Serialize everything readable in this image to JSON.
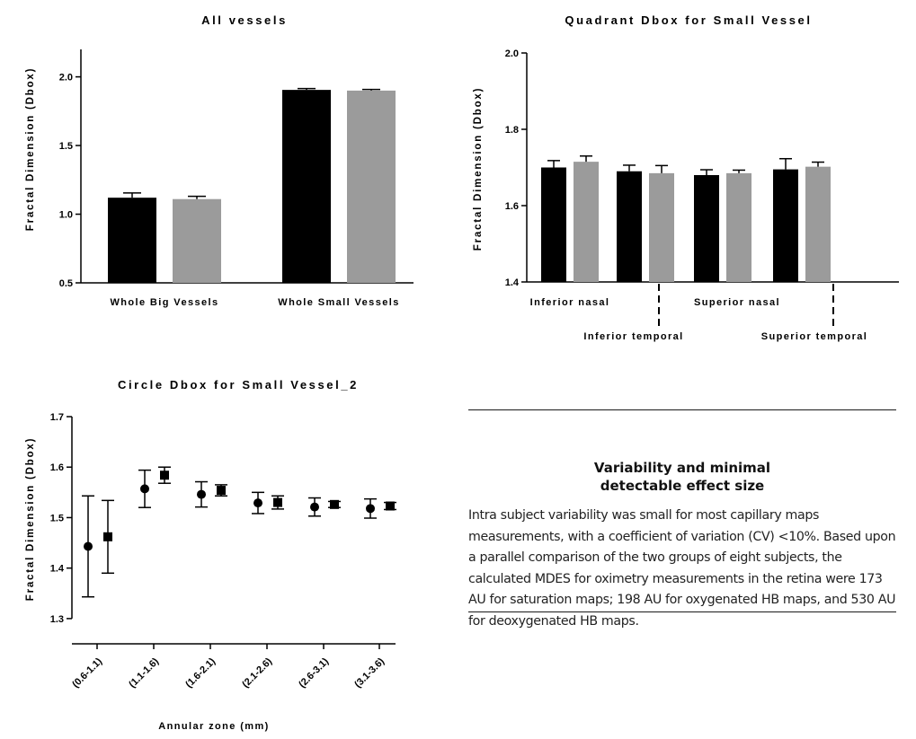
{
  "chart_data": [
    {
      "type": "bar",
      "title": "All vessels",
      "ylabel": "Fractal Dimension (Dbox)",
      "ylim": [
        0.5,
        2.2
      ],
      "yticks": [
        "0.5",
        "1.0",
        "1.5",
        "2.0"
      ],
      "categories": [
        "Whole Big Vessels",
        "Whole Small Vessels"
      ],
      "series": [
        {
          "color": "#000000",
          "values": [
            1.12,
            1.905
          ],
          "errors": [
            0.035,
            0.01
          ]
        },
        {
          "color": "#9b9b9b",
          "values": [
            1.11,
            1.9
          ],
          "errors": [
            0.02,
            0.008
          ]
        }
      ]
    },
    {
      "type": "bar",
      "title": "Quadrant Dbox for Small Vessel",
      "ylabel": "Fractal Dimension (Dbox)",
      "ylim": [
        1.4,
        2.0
      ],
      "yticks": [
        "1.4",
        "1.6",
        "1.8",
        "2.0"
      ],
      "categories": [
        "Inferior nasal",
        "Inferior temporal",
        "Superior nasal",
        "Superior temporal"
      ],
      "series": [
        {
          "color": "#000000",
          "values": [
            1.7,
            1.69,
            1.68,
            1.695
          ],
          "errors": [
            0.018,
            0.016,
            0.014,
            0.028
          ]
        },
        {
          "color": "#9b9b9b",
          "values": [
            1.715,
            1.685,
            1.685,
            1.702
          ],
          "errors": [
            0.015,
            0.02,
            0.008,
            0.012
          ]
        }
      ]
    },
    {
      "type": "scatter",
      "title": "Circle Dbox for Small Vessel_2",
      "xlabel": "Annular zone (mm)",
      "ylabel": "Fractal Dimension (Dbox)",
      "ylim": [
        1.25,
        1.7
      ],
      "yticks": [
        "1.3",
        "1.4",
        "1.5",
        "1.6",
        "1.7"
      ],
      "categories": [
        "(0.6-1.1)",
        "(1.1-1.6)",
        "(1.6-2.1)",
        "(2.1-2.6)",
        "(2.6-3.1)",
        "(3.1-3.6)"
      ],
      "series": [
        {
          "marker": "circle",
          "values": [
            1.443,
            1.557,
            1.546,
            1.529,
            1.521,
            1.518
          ],
          "errors": [
            0.1,
            0.037,
            0.025,
            0.021,
            0.018,
            0.019
          ]
        },
        {
          "marker": "square",
          "values": [
            1.462,
            1.584,
            1.554,
            1.53,
            1.526,
            1.523
          ],
          "errors": [
            0.072,
            0.016,
            0.011,
            0.013,
            0.006,
            0.007
          ]
        }
      ]
    }
  ],
  "textbox": {
    "heading_line1": "Variability and minimal",
    "heading_line2": "detectable effect size",
    "body": "Intra subject variability was small for most capillary maps measurements, with a coefficient of variation (CV) <10%. Based upon a parallel comparison of the two groups of eight subjects, the calculated MDES for oximetry measurements in the retina were 173 AU for saturation maps; 198 AU for oxygenated HB maps, and 530 AU for deoxygenated HB maps."
  }
}
